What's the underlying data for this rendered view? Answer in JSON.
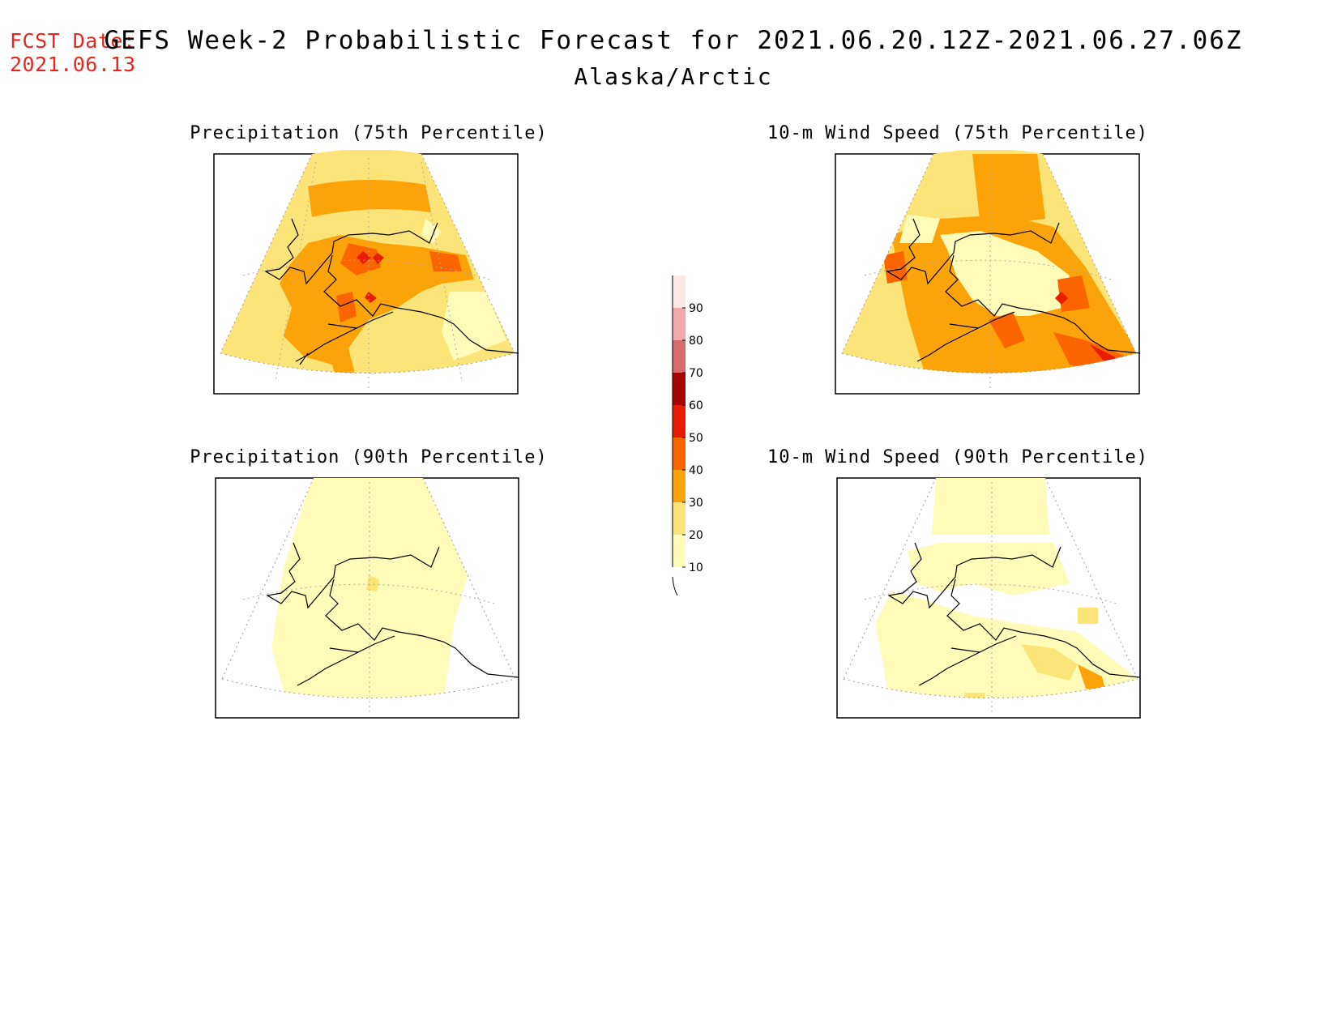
{
  "header": {
    "fcst_label": "FCST Date:",
    "fcst_date": "2021.06.13",
    "title": "GEFS Week-2 Probabilistic Forecast for 2021.06.20.12Z-2021.06.27.06Z",
    "region": "Alaska/Arctic"
  },
  "panels": [
    {
      "id": "precip75",
      "title": "Precipitation (75th Percentile)"
    },
    {
      "id": "wind75",
      "title": "10-m Wind Speed (75th Percentile)"
    },
    {
      "id": "precip90",
      "title": "Precipitation (90th Percentile)"
    },
    {
      "id": "wind90",
      "title": "10-m Wind Speed (90th Percentile)"
    }
  ],
  "colorbar": {
    "levels": [
      "10",
      "20",
      "30",
      "40",
      "50",
      "60",
      "70",
      "80",
      "90"
    ],
    "colors": [
      "#fffbb8",
      "#fde479",
      "#fca30a",
      "#fb6500",
      "#e81c00",
      "#a80500",
      "#d96a6a",
      "#f2a9a9",
      "#fde8e8"
    ]
  },
  "palette": {
    "p10": "#fffbb8",
    "p20": "#fde479",
    "p30": "#fca30a",
    "p40": "#fb6500",
    "p50": "#e81c00",
    "fcst_color": "#e8261e"
  }
}
